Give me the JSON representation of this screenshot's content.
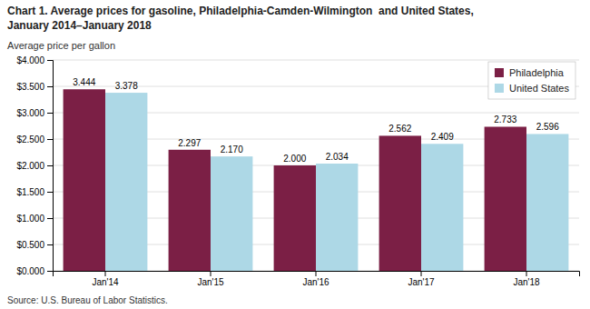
{
  "chart_data": {
    "type": "bar",
    "title": "Chart 1. Average prices for gasoline, Philadelphia-Camden-Wilmington  and United States,",
    "subtitle": "January 2014–January 2018",
    "ylabel": "Average price per gallon",
    "source": "Source: U.S. Bureau of Labor Statistics.",
    "categories": [
      "Jan'14",
      "Jan'15",
      "Jan'16",
      "Jan'17",
      "Jan'18"
    ],
    "series": [
      {
        "name": "Philadelphia",
        "color": "#7B1F45",
        "values": [
          3.444,
          2.297,
          2.0,
          2.562,
          2.733
        ],
        "value_labels": [
          "3.444",
          "2.297",
          "2.000",
          "2.562",
          "2.733"
        ]
      },
      {
        "name": "United States",
        "color": "#ADD8E6",
        "values": [
          3.378,
          2.17,
          2.034,
          2.409,
          2.596
        ],
        "value_labels": [
          "3.378",
          "2.170",
          "2.034",
          "2.409",
          "2.596"
        ]
      }
    ],
    "ylim": [
      0,
      4.0
    ],
    "yticks": [
      {
        "value": 0.0,
        "label": "$0.000"
      },
      {
        "value": 0.5,
        "label": "$0.500"
      },
      {
        "value": 1.0,
        "label": "$1.000"
      },
      {
        "value": 1.5,
        "label": "$1.500"
      },
      {
        "value": 2.0,
        "label": "$2.000"
      },
      {
        "value": 2.5,
        "label": "$2.500"
      },
      {
        "value": 3.0,
        "label": "$3.000"
      },
      {
        "value": 3.5,
        "label": "$3.500"
      },
      {
        "value": 4.0,
        "label": "$4.000"
      }
    ],
    "grid": true,
    "legend": "upper right",
    "data_labels": true
  }
}
